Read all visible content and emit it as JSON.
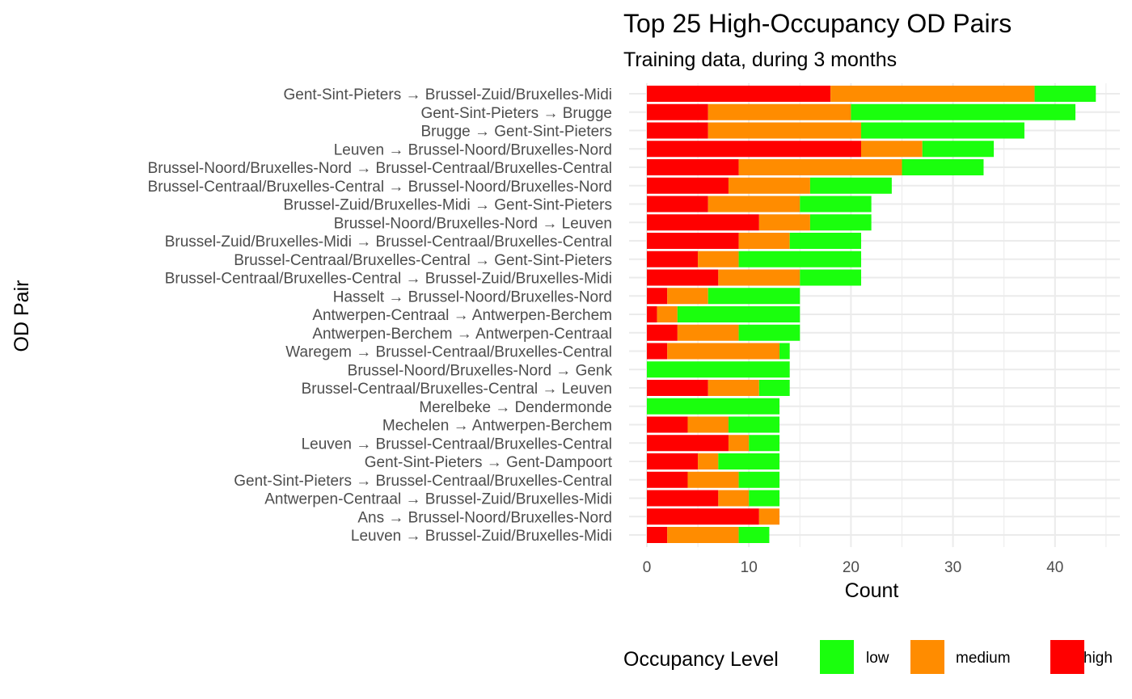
{
  "chart_data": {
    "type": "bar",
    "orientation": "horizontal",
    "stacked": true,
    "title": "Top 25 High-Occupancy OD Pairs",
    "subtitle": "Training data, during 3 months",
    "xlabel": "Count",
    "ylabel": "OD Pair",
    "xlim": [
      0,
      45
    ],
    "xticks": [
      0,
      10,
      20,
      30,
      40
    ],
    "grid": true,
    "legend": {
      "title": "Occupancy Level",
      "position": "bottom",
      "entries": [
        {
          "key": "low",
          "label": "low",
          "color": "#1aff0d"
        },
        {
          "key": "medium",
          "label": "medium",
          "color": "#ff8c00"
        },
        {
          "key": "high",
          "label": "high",
          "color": "#ff0000"
        }
      ]
    },
    "stack_order": [
      "high",
      "medium",
      "low"
    ],
    "categories": [
      "Gent-Sint-Pieters → Brussel-Zuid/Bruxelles-Midi",
      "Gent-Sint-Pieters → Brugge",
      "Brugge → Gent-Sint-Pieters",
      "Leuven → Brussel-Noord/Bruxelles-Nord",
      "Brussel-Noord/Bruxelles-Nord → Brussel-Centraal/Bruxelles-Central",
      "Brussel-Centraal/Bruxelles-Central → Brussel-Noord/Bruxelles-Nord",
      "Brussel-Zuid/Bruxelles-Midi → Gent-Sint-Pieters",
      "Brussel-Noord/Bruxelles-Nord → Leuven",
      "Brussel-Zuid/Bruxelles-Midi → Brussel-Centraal/Bruxelles-Central",
      "Brussel-Centraal/Bruxelles-Central → Gent-Sint-Pieters",
      "Brussel-Centraal/Bruxelles-Central → Brussel-Zuid/Bruxelles-Midi",
      "Hasselt → Brussel-Noord/Bruxelles-Nord",
      "Antwerpen-Centraal → Antwerpen-Berchem",
      "Antwerpen-Berchem → Antwerpen-Centraal",
      "Waregem → Brussel-Centraal/Bruxelles-Central",
      "Brussel-Noord/Bruxelles-Nord → Genk",
      "Brussel-Centraal/Bruxelles-Central → Leuven",
      "Merelbeke → Dendermonde",
      "Mechelen → Antwerpen-Berchem",
      "Leuven → Brussel-Centraal/Bruxelles-Central",
      "Gent-Sint-Pieters → Gent-Dampoort",
      "Gent-Sint-Pieters → Brussel-Centraal/Bruxelles-Central",
      "Antwerpen-Centraal → Brussel-Zuid/Bruxelles-Midi",
      "Ans → Brussel-Noord/Bruxelles-Nord",
      "Leuven → Brussel-Zuid/Bruxelles-Midi"
    ],
    "series": [
      {
        "name": "high",
        "values": [
          18,
          6,
          6,
          21,
          9,
          8,
          6,
          11,
          9,
          5,
          7,
          2,
          1,
          3,
          2,
          0,
          6,
          0,
          4,
          8,
          5,
          4,
          7,
          11,
          2
        ]
      },
      {
        "name": "medium",
        "values": [
          20,
          14,
          15,
          6,
          16,
          8,
          9,
          5,
          5,
          4,
          8,
          4,
          2,
          6,
          11,
          0,
          5,
          0,
          4,
          2,
          2,
          5,
          3,
          2,
          7
        ]
      },
      {
        "name": "low",
        "values": [
          6,
          22,
          16,
          7,
          8,
          8,
          7,
          6,
          7,
          12,
          6,
          9,
          12,
          6,
          1,
          14,
          3,
          13,
          5,
          3,
          6,
          4,
          3,
          0,
          3
        ]
      }
    ]
  }
}
